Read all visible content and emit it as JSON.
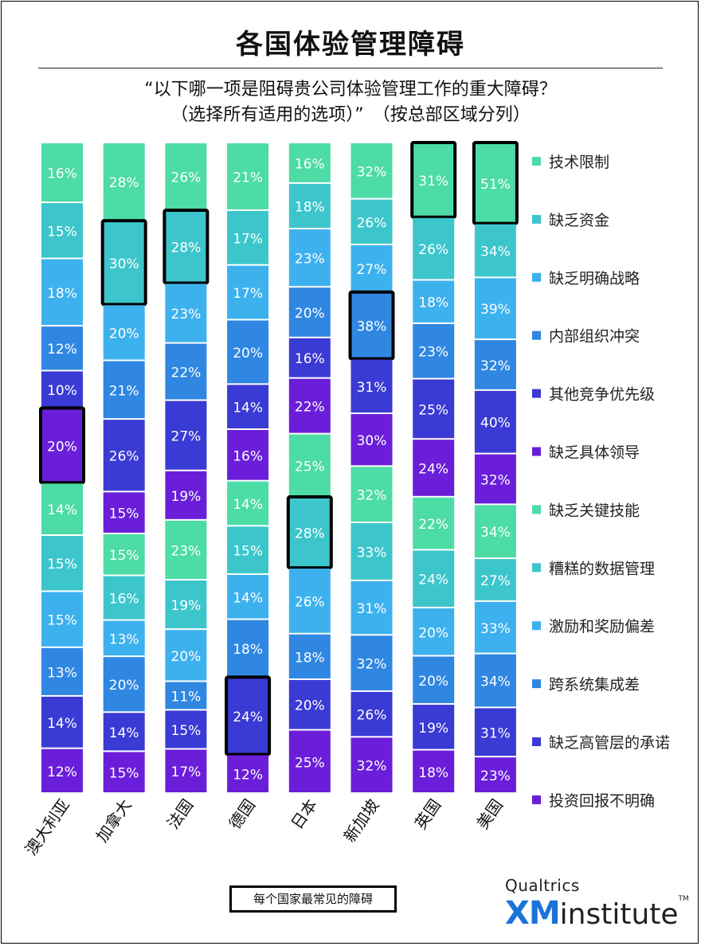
{
  "title": "各国体验管理障碍",
  "subtitle_line1": "“以下哪一项是阻碍贵公司体验管理工作的重大障碍？",
  "subtitle_line2": "（选择所有适用的选项）”　（按总部区域分列）",
  "note": "每个国家最常见的障碍",
  "brand": {
    "top": "Qualtrics",
    "xm": "XM",
    "institute": "institute",
    "tm": "TM"
  },
  "colors": {
    "技术限制": "#4ddba6",
    "缺乏资金": "#3cc6cc",
    "缺乏明确战略": "#3db1ee",
    "内部组织冲突": "#2f87e2",
    "其他竞争优先级": "#3a3ad4",
    "缺乏具体领导": "#6a1ed9",
    "缺乏关键技能": "#4ddba6",
    "糟糕的数据管理": "#3cc6cc",
    "激励和奖励偏差": "#3db1ee",
    "跨系统集成差": "#2f87e2",
    "缺乏高管层的承诺": "#3a3ad4",
    "投资回报不明确": "#6a1ed9"
  },
  "chart_data": {
    "type": "bar",
    "stacked": true,
    "orientation": "vertical",
    "categories": [
      "澳大利亚",
      "加拿大",
      "法国",
      "德国",
      "日本",
      "新加坡",
      "英国",
      "美国"
    ],
    "series": [
      {
        "name": "技术限制",
        "values": [
          16,
          28,
          26,
          21,
          16,
          32,
          31,
          51
        ]
      },
      {
        "name": "缺乏资金",
        "values": [
          15,
          30,
          28,
          17,
          18,
          26,
          26,
          34
        ]
      },
      {
        "name": "缺乏明确战略",
        "values": [
          18,
          20,
          23,
          17,
          23,
          27,
          18,
          39
        ]
      },
      {
        "name": "内部组织冲突",
        "values": [
          12,
          21,
          22,
          20,
          20,
          38,
          23,
          32
        ]
      },
      {
        "name": "其他竞争优先级",
        "values": [
          10,
          26,
          27,
          14,
          16,
          31,
          25,
          40
        ]
      },
      {
        "name": "缺乏具体领导",
        "values": [
          20,
          15,
          19,
          16,
          22,
          30,
          24,
          32
        ]
      },
      {
        "name": "缺乏关键技能",
        "values": [
          14,
          15,
          23,
          14,
          25,
          32,
          22,
          34
        ]
      },
      {
        "name": "糟糕的数据管理",
        "values": [
          15,
          16,
          19,
          15,
          28,
          33,
          24,
          27
        ]
      },
      {
        "name": "激励和奖励偏差",
        "values": [
          15,
          13,
          20,
          14,
          26,
          31,
          20,
          33
        ]
      },
      {
        "name": "跨系统集成差",
        "values": [
          13,
          20,
          11,
          18,
          18,
          32,
          20,
          34
        ]
      },
      {
        "name": "缺乏高管层的承诺",
        "values": [
          14,
          14,
          15,
          24,
          20,
          26,
          19,
          31
        ]
      },
      {
        "name": "投资回报不明确",
        "values": [
          12,
          15,
          17,
          12,
          25,
          32,
          18,
          23
        ]
      }
    ],
    "highlight": {
      "澳大利亚": "缺乏具体领导",
      "加拿大": "缺乏资金",
      "法国": "缺乏资金",
      "德国": "缺乏高管层的承诺",
      "日本": "糟糕的数据管理",
      "新加坡": "内部组织冲突",
      "英国": "技术限制",
      "美国": "技术限制"
    },
    "value_suffix": "%",
    "legend_position": "right",
    "grid": false
  }
}
